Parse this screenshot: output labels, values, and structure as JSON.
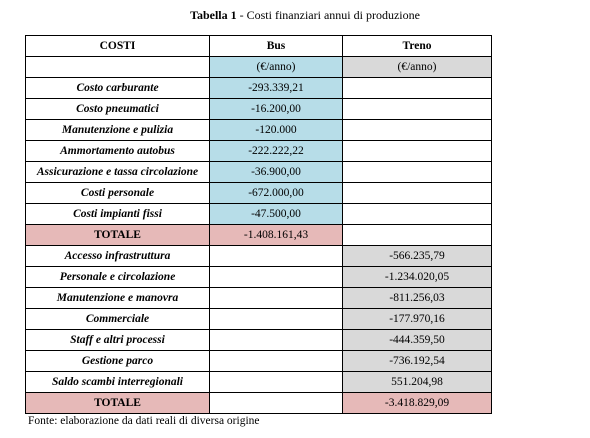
{
  "caption": {
    "bold": "Tabella 1",
    "rest": " - Costi finanziari annui di produzione"
  },
  "header": {
    "costs": "COSTI",
    "bus": "Bus",
    "train": "Treno"
  },
  "units": {
    "bus": "(€/anno)",
    "train": "(€/anno)"
  },
  "bus_rows": [
    {
      "label": "Costo carburante",
      "value": "-293.339,21"
    },
    {
      "label": "Costo pneumatici",
      "value": "-16.200,00"
    },
    {
      "label": "Manutenzione e pulizia",
      "value": "-120.000"
    },
    {
      "label": "Ammortamento autobus",
      "value": "-222.222,22"
    },
    {
      "label": "Assicurazione e tassa circolazione",
      "value": "-36.900,00"
    },
    {
      "label": "Costi personale",
      "value": "-672.000,00"
    },
    {
      "label": "Costi impianti fissi",
      "value": "-47.500,00"
    }
  ],
  "bus_total": {
    "label": "TOTALE",
    "value": "-1.408.161,43"
  },
  "train_rows": [
    {
      "label": "Accesso infrastruttura",
      "value": "-566.235,79"
    },
    {
      "label": "Personale e circolazione",
      "value": "-1.234.020,05"
    },
    {
      "label": "Manutenzione e manovra",
      "value": "-811.256,03"
    },
    {
      "label": "Commerciale",
      "value": "-177.970,16"
    },
    {
      "label": "Staff e altri processi",
      "value": "-444.359,50"
    },
    {
      "label": "Gestione parco",
      "value": "-736.192,54"
    },
    {
      "label": "Saldo scambi interregionali",
      "value": "551.204,98"
    }
  ],
  "train_total": {
    "label": "TOTALE",
    "value": "-3.418.829,09"
  },
  "source": "Fonte: elaborazione da dati reali di diversa origine",
  "colors": {
    "bus_fill": "#b7dde8",
    "train_fill": "#d9d9d9",
    "total_fill": "#e6b9b8"
  }
}
